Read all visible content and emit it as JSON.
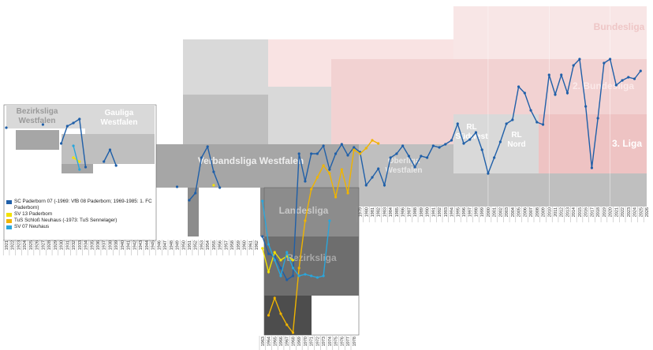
{
  "chart_data": {
    "type": "line",
    "xlim": [
      1921,
      2026
    ],
    "ylim": [
      0,
      444
    ],
    "xtick_groups": [
      [
        1921,
        1922,
        1923,
        1924,
        1925,
        1926,
        1927,
        1928,
        1929,
        1930,
        1931,
        1932,
        1933,
        1934,
        1935,
        1936,
        1937,
        1938,
        1939,
        1940,
        1941,
        1942,
        1943,
        1944,
        1945,
        1946,
        1947,
        1948,
        1949,
        1950,
        1951,
        1952,
        1953,
        1954,
        1955,
        1956,
        1957,
        1958,
        1959,
        1960,
        1961,
        1962
      ],
      [
        1963,
        1964,
        1965,
        1966,
        1967,
        1968,
        1969,
        1970,
        1971,
        1972,
        1973,
        1974,
        1975,
        1976,
        1977,
        1978
      ],
      [
        1979,
        1980,
        1981,
        1982,
        1983,
        1984,
        1985,
        1986,
        1987,
        1988,
        1989,
        1990,
        1991,
        1992,
        1993,
        1994,
        1995,
        1996,
        1997,
        1998,
        1999,
        2000,
        2001,
        2002,
        2003,
        2004,
        2005,
        2006,
        2007,
        2008,
        2009,
        2010,
        2011,
        2012,
        2013,
        2014,
        2015,
        2016,
        2017,
        2018,
        2019,
        2020,
        2021,
        2022,
        2023,
        2024,
        2025,
        2026
      ]
    ],
    "leagues": [
      {
        "lines": [
          "Bundesliga"
        ]
      },
      {
        "lines": [
          "2. Bundesliga"
        ]
      },
      {
        "lines": [
          "3. Liga"
        ]
      },
      {
        "lines": [
          "RL",
          "Südwest"
        ]
      },
      {
        "lines": [
          "RL",
          "Nord"
        ]
      },
      {
        "lines": [
          "Oberliga",
          "Westfalen"
        ]
      },
      {
        "lines": [
          "Verbandsliga Westfalen"
        ]
      },
      {
        "lines": [
          "Landesliga"
        ]
      },
      {
        "lines": [
          "Bezirksliga"
        ]
      },
      {
        "lines": [
          "Bezirksliga",
          "Westfalen"
        ]
      },
      {
        "lines": [
          "Gauliga",
          "Westfalen"
        ]
      }
    ],
    "series": [
      {
        "name": "SC Paderborn 07 (-1969: VfB 08 Paderborn; 1969-1985: 1. FC Paderborn)",
        "color": "#1f5fa8",
        "x": [
          1921,
          1922,
          1927,
          1928,
          1930,
          1931,
          1932,
          1933,
          1934,
          1935,
          1937,
          1938,
          1939,
          1940,
          1949,
          1950,
          1951,
          1952,
          1953,
          1954,
          1955,
          1956,
          1957,
          1963,
          1964,
          1965,
          1966,
          1967,
          1968,
          1969,
          1970,
          1971,
          1972,
          1973,
          1974,
          1975,
          1976,
          1977,
          1978,
          1979,
          1980,
          1981,
          1982,
          1983,
          1984,
          1985,
          1986,
          1987,
          1988,
          1989,
          1990,
          1991,
          1992,
          1993,
          1994,
          1995,
          1996,
          1997,
          1998,
          1999,
          2000,
          2001,
          2002,
          2003,
          2004,
          2005,
          2006,
          2007,
          2008,
          2009,
          2010,
          2011,
          2012,
          2013,
          2014,
          2015,
          2016,
          2017,
          2018,
          2019,
          2020,
          2021,
          2022,
          2023,
          2024,
          2025
        ],
        "values": [
          162,
          null,
          158,
          null,
          182,
          160,
          156,
          151,
          212,
          null,
          205,
          190,
          210,
          null,
          237,
          null,
          254,
          245,
          200,
          186,
          218,
          238,
          null,
          300,
          322,
          325,
          340,
          355,
          350,
          195,
          230,
          195,
          195,
          185,
          215,
          195,
          183,
          197,
          187,
          193,
          235,
          225,
          214,
          235,
          200,
          195,
          185,
          198,
          212,
          198,
          200,
          185,
          187,
          183,
          178,
          157,
          182,
          177,
          168,
          190,
          220,
          200,
          180,
          157,
          152,
          110,
          118,
          140,
          155,
          158,
          95,
          120,
          95,
          118,
          83,
          75,
          135,
          213,
          150,
          80,
          75,
          108,
          102,
          98,
          100,
          90
        ]
      },
      {
        "name": "SV 13 Paderborn",
        "color": "#f2e200",
        "x": [
          1932,
          1933,
          1934,
          1955,
          1956,
          1963,
          1964,
          1965,
          1966,
          1967,
          1968
        ],
        "values": [
          200,
          205,
          null,
          235,
          null,
          315,
          345,
          320,
          330,
          325,
          330
        ]
      },
      {
        "name": "TuS Schloß Neuhaus (-1973: TuS Sennelager)",
        "color": "#f0b400",
        "x": [
          1964,
          1965,
          1966,
          1967,
          1968,
          1969,
          1970,
          1971,
          1972,
          1973,
          1974,
          1975,
          1976,
          1977,
          1978,
          1979,
          1980,
          1981,
          1982
        ],
        "values": [
          400,
          378,
          398,
          412,
          422,
          340,
          280,
          240,
          225,
          210,
          220,
          250,
          215,
          245,
          190,
          195,
          188,
          178,
          182
        ]
      },
      {
        "name": "SV 07 Neuhaus",
        "color": "#2aa6dc",
        "x": [
          1932,
          1933,
          1934,
          1963,
          1964,
          1965,
          1966,
          1967,
          1968,
          1969,
          1970,
          1971,
          1972,
          1973,
          1974
        ],
        "values": [
          185,
          215,
          null,
          255,
          310,
          330,
          350,
          320,
          340,
          350,
          348,
          350,
          352,
          350,
          280
        ]
      }
    ]
  }
}
